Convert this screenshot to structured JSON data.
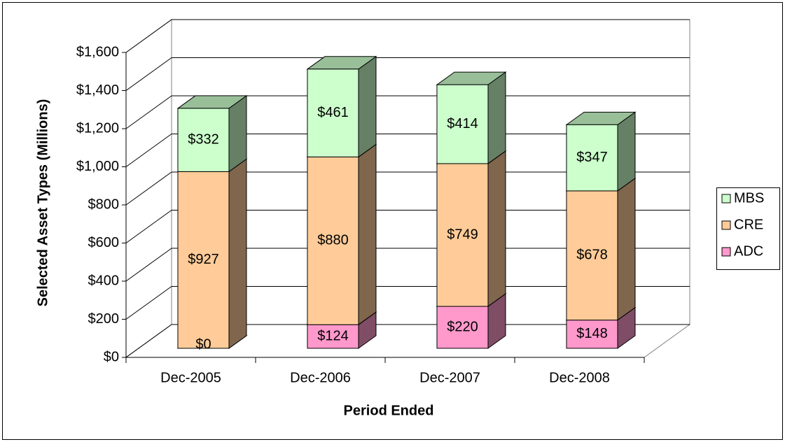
{
  "chart_data": {
    "type": "bar3d_stacked",
    "x_label": "Period Ended",
    "y_label": "Selected Asset Types (Millions)",
    "categories": [
      "Dec-2005",
      "Dec-2006",
      "Dec-2007",
      "Dec-2008"
    ],
    "series": [
      {
        "name": "ADC",
        "color": "#ff99cc",
        "values": [
          0,
          124,
          220,
          148
        ],
        "value_labels": [
          "$0",
          "$124",
          "$220",
          "$148"
        ]
      },
      {
        "name": "CRE",
        "color": "#ffcc99",
        "values": [
          927,
          880,
          749,
          678
        ],
        "value_labels": [
          "$927",
          "$880",
          "$749",
          "$678"
        ]
      },
      {
        "name": "MBS",
        "color": "#ccffcc",
        "values": [
          332,
          461,
          414,
          347
        ],
        "value_labels": [
          "$332",
          "$461",
          "$414",
          "$347"
        ]
      }
    ],
    "ylim": [
      0,
      1600
    ],
    "yticks": [
      {
        "value": 0,
        "label": "$0"
      },
      {
        "value": 200,
        "label": "$200"
      },
      {
        "value": 400,
        "label": "$400"
      },
      {
        "value": 600,
        "label": "$600"
      },
      {
        "value": 800,
        "label": "$800"
      },
      {
        "value": 1000,
        "label": "$1,000"
      },
      {
        "value": 1200,
        "label": "$1,200"
      },
      {
        "value": 1400,
        "label": "$1,400"
      },
      {
        "value": 1600,
        "label": "$1,600"
      }
    ],
    "grid": true,
    "legend": "right"
  }
}
